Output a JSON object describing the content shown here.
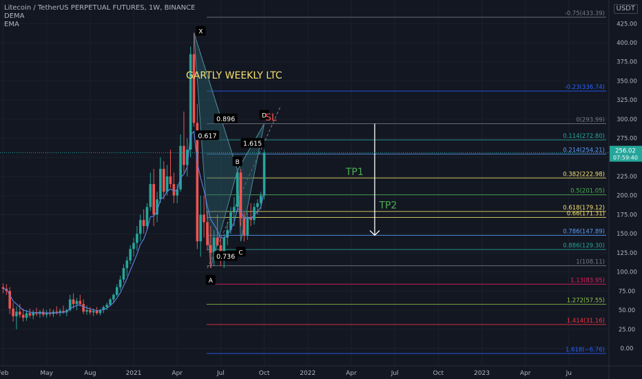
{
  "legend": {
    "symbol": "Litecoin / TetherUS PERPETUAL FUTURES, 1W, BINANCE",
    "ind1": "DEMA",
    "ind2": "EMA"
  },
  "currency": "USDT",
  "colors": {
    "bg": "#131722",
    "up": "#26a69a",
    "down": "#ef5350",
    "axis_text": "#b2b5be",
    "pattern_fill": "#2b5f6b",
    "dema": "#5b7fd8"
  },
  "chart_data": {
    "type": "candlestick",
    "title": "GARTLY WEEKLY LTC",
    "ylim": [
      -14,
      446
    ],
    "y_ticks": [
      0,
      25,
      50,
      75,
      100,
      125,
      150,
      175,
      200,
      225,
      250,
      275,
      300,
      325,
      350,
      375,
      400,
      425
    ],
    "y_tick_labels": [
      "0.00",
      "25.00",
      "50.00",
      "75.00",
      "100.00",
      "125.00",
      "150.00",
      "175.00",
      "200.00",
      "225.00",
      "250.00",
      "275.00",
      "300.00",
      "325.00",
      "350.00",
      "375.00",
      "400.00",
      "425.00"
    ],
    "x_tick_labels": [
      "Feb",
      "May",
      "Aug",
      "2021",
      "Apr",
      "Jul",
      "Oct",
      "2022",
      "Apr",
      "Jul",
      "Oct",
      "2023",
      "Apr",
      "Ju"
    ],
    "x_tick_weeks": [
      0,
      13,
      26,
      39,
      52,
      65,
      78,
      91,
      104,
      117,
      130,
      143,
      156,
      169
    ],
    "current_price": "256.02",
    "countdown": "07:59:40",
    "candles": [
      [
        80,
        85,
        72,
        78
      ],
      [
        78,
        84,
        70,
        75
      ],
      [
        75,
        80,
        45,
        52
      ],
      [
        52,
        60,
        35,
        42
      ],
      [
        42,
        55,
        25,
        48
      ],
      [
        48,
        58,
        40,
        44
      ],
      [
        44,
        52,
        35,
        40
      ],
      [
        40,
        50,
        36,
        46
      ],
      [
        46,
        52,
        40,
        43
      ],
      [
        43,
        50,
        38,
        47
      ],
      [
        47,
        53,
        42,
        45
      ],
      [
        45,
        50,
        40,
        48
      ],
      [
        48,
        52,
        41,
        44
      ],
      [
        44,
        50,
        40,
        47
      ],
      [
        47,
        52,
        42,
        45
      ],
      [
        45,
        51,
        41,
        48
      ],
      [
        48,
        55,
        44,
        46
      ],
      [
        46,
        52,
        42,
        49
      ],
      [
        49,
        56,
        45,
        47
      ],
      [
        47,
        52,
        42,
        50
      ],
      [
        50,
        70,
        48,
        64
      ],
      [
        64,
        72,
        52,
        58
      ],
      [
        58,
        66,
        50,
        62
      ],
      [
        62,
        70,
        55,
        58
      ],
      [
        58,
        64,
        45,
        48
      ],
      [
        48,
        56,
        44,
        50
      ],
      [
        50,
        54,
        44,
        47
      ],
      [
        47,
        52,
        42,
        49
      ],
      [
        49,
        54,
        44,
        46
      ],
      [
        46,
        52,
        43,
        50
      ],
      [
        50,
        56,
        46,
        54
      ],
      [
        54,
        60,
        50,
        57
      ],
      [
        57,
        66,
        55,
        64
      ],
      [
        64,
        72,
        60,
        70
      ],
      [
        70,
        84,
        68,
        80
      ],
      [
        80,
        95,
        76,
        90
      ],
      [
        90,
        110,
        86,
        105
      ],
      [
        105,
        120,
        95,
        115
      ],
      [
        115,
        135,
        110,
        130
      ],
      [
        130,
        145,
        120,
        138
      ],
      [
        138,
        160,
        128,
        150
      ],
      [
        150,
        175,
        140,
        168
      ],
      [
        168,
        182,
        150,
        160
      ],
      [
        160,
        190,
        155,
        185
      ],
      [
        185,
        230,
        180,
        215
      ],
      [
        215,
        235,
        160,
        175
      ],
      [
        175,
        205,
        165,
        195
      ],
      [
        195,
        250,
        190,
        235
      ],
      [
        235,
        245,
        195,
        205
      ],
      [
        205,
        240,
        200,
        225
      ],
      [
        225,
        260,
        210,
        215
      ],
      [
        215,
        230,
        190,
        200
      ],
      [
        200,
        215,
        190,
        208
      ],
      [
        208,
        280,
        205,
        265
      ],
      [
        265,
        310,
        230,
        240
      ],
      [
        240,
        275,
        225,
        260
      ],
      [
        260,
        395,
        250,
        385
      ],
      [
        385,
        413,
        290,
        295
      ],
      [
        295,
        320,
        130,
        140
      ],
      [
        140,
        200,
        120,
        175
      ],
      [
        175,
        200,
        145,
        165
      ],
      [
        165,
        180,
        128,
        135
      ],
      [
        135,
        160,
        105,
        125
      ],
      [
        125,
        155,
        108,
        145
      ],
      [
        145,
        175,
        135,
        135
      ],
      [
        135,
        145,
        108,
        120
      ],
      [
        120,
        150,
        105,
        145
      ],
      [
        145,
        165,
        135,
        155
      ],
      [
        155,
        185,
        150,
        178
      ],
      [
        178,
        198,
        160,
        185
      ],
      [
        185,
        233,
        180,
        230
      ],
      [
        230,
        235,
        160,
        170
      ],
      [
        170,
        178,
        140,
        148
      ],
      [
        148,
        178,
        142,
        172
      ],
      [
        172,
        190,
        160,
        168
      ],
      [
        168,
        190,
        162,
        185
      ],
      [
        185,
        195,
        175,
        190
      ],
      [
        190,
        205,
        182,
        200
      ],
      [
        200,
        260,
        195,
        256
      ]
    ],
    "fib_levels": [
      {
        "ratio": "-0.75",
        "price": 433.39,
        "label": "-0.75(433.39)",
        "color": "#787b86"
      },
      {
        "ratio": "-0.23",
        "price": 336.74,
        "label": "-0.23(336.74)",
        "color": "#2962ff"
      },
      {
        "ratio": "0",
        "price": 293.99,
        "label": "0(293.99)",
        "color": "#787b86"
      },
      {
        "ratio": "0.114",
        "price": 272.8,
        "label": "0.114(272.80)",
        "color": "#26a69a"
      },
      {
        "ratio": "0.214",
        "price": 254.21,
        "label": "0.214(254.21)",
        "color": "#5b9cf6"
      },
      {
        "ratio": "0.382",
        "price": 222.98,
        "label": "0.382(222.98)",
        "color": "#f4e16d"
      },
      {
        "ratio": "0.5",
        "price": 201.05,
        "label": "0.5(201.05)",
        "color": "#4caf50"
      },
      {
        "ratio": "0.618",
        "price": 179.12,
        "label": "0.618(179.12)",
        "color": "#f4e16d"
      },
      {
        "ratio": "0.66",
        "price": 171.31,
        "label": "0.66(171.31)",
        "color": "#f4e16d"
      },
      {
        "ratio": "0.786",
        "price": 147.89,
        "label": "0.786(147.89)",
        "color": "#5b9cf6"
      },
      {
        "ratio": "0.886",
        "price": 129.3,
        "label": "0.886(129.30)",
        "color": "#26a69a"
      },
      {
        "ratio": "1",
        "price": 108.11,
        "label": "1(108.11)",
        "color": "#787b86"
      },
      {
        "ratio": "1.13",
        "price": 83.95,
        "label": "1.13(83.95)",
        "color": "#e91e63"
      },
      {
        "ratio": "1.272",
        "price": 57.55,
        "label": "1.272(57.55)",
        "color": "#8bc34a"
      },
      {
        "ratio": "1.414",
        "price": 31.16,
        "label": "1.414(31.16)",
        "color": "#f23645"
      },
      {
        "ratio": "1.618",
        "price": -6.76,
        "label": "1.618(−6.76)",
        "color": "#2962ff"
      }
    ],
    "pattern_points": [
      {
        "label": "X",
        "week": 57,
        "price": 413
      },
      {
        "label": "A",
        "week": 62,
        "price": 105
      },
      {
        "label": "B",
        "week": 70,
        "price": 233
      },
      {
        "label": "C",
        "week": 71,
        "price": 140
      },
      {
        "label": "D",
        "week": 78,
        "price": 294
      }
    ],
    "ratio_labels": [
      {
        "text": "0.617",
        "week": 61,
        "price": 278
      },
      {
        "text": "0.896",
        "week": 66.5,
        "price": 300
      },
      {
        "text": "1.615",
        "week": 74.5,
        "price": 268
      },
      {
        "text": "0.736",
        "week": 66.5,
        "price": 120
      }
    ],
    "annotations": [
      {
        "text": "GARTLY WEEKLY LTC",
        "week": 69,
        "price": 353,
        "color": "#f4e16d",
        "size": 14
      },
      {
        "text": "SL",
        "week": 80,
        "price": 298,
        "color": "#ef5350",
        "size": 14
      },
      {
        "text": "TP1",
        "week": 105,
        "price": 227,
        "color": "#4caf50",
        "size": 14
      },
      {
        "text": "TP2",
        "week": 115,
        "price": 183,
        "color": "#4caf50",
        "size": 14
      }
    ],
    "arrow": {
      "week": 111,
      "from": 293.99,
      "to": 147.89
    }
  }
}
